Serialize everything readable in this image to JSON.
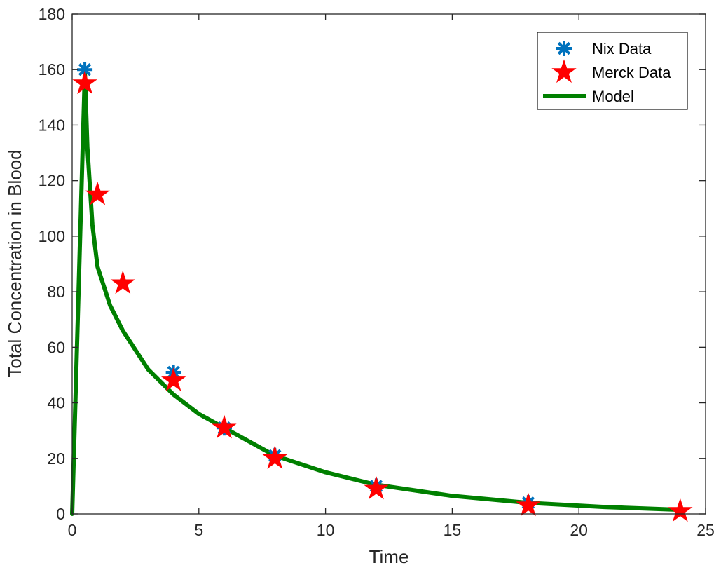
{
  "chart_data": {
    "type": "line",
    "xlabel": "Time",
    "ylabel": "Total Concentration in Blood",
    "xlim": [
      0,
      25
    ],
    "ylim": [
      0,
      180
    ],
    "xticks": [
      0,
      5,
      10,
      15,
      20,
      25
    ],
    "yticks": [
      0,
      20,
      40,
      60,
      80,
      100,
      120,
      140,
      160,
      180
    ],
    "grid": false,
    "legend_position": "top-right",
    "series": [
      {
        "name": "Nix Data",
        "type": "scatter",
        "marker": "asterisk",
        "color": "#0072BD",
        "x": [
          0.5,
          4,
          6,
          8,
          12,
          18
        ],
        "y": [
          160,
          51,
          31,
          21,
          10,
          4
        ]
      },
      {
        "name": "Merck Data",
        "type": "scatter",
        "marker": "pentagram",
        "color": "#FF0000",
        "x": [
          0.5,
          1,
          2,
          4,
          6,
          8,
          12,
          18,
          24
        ],
        "y": [
          155,
          115,
          83,
          48,
          31,
          20,
          9,
          3,
          1
        ]
      },
      {
        "name": "Model",
        "type": "line",
        "color": "#008000",
        "x": [
          0,
          0.5,
          0.6,
          0.8,
          1,
          1.5,
          2,
          3,
          4,
          5,
          6,
          8,
          10,
          12,
          15,
          18,
          21,
          24
        ],
        "y": [
          0,
          159,
          132,
          104,
          89,
          75,
          66,
          52,
          43,
          36,
          31,
          21,
          15,
          10.5,
          6.5,
          4,
          2.5,
          1.5
        ]
      }
    ]
  }
}
